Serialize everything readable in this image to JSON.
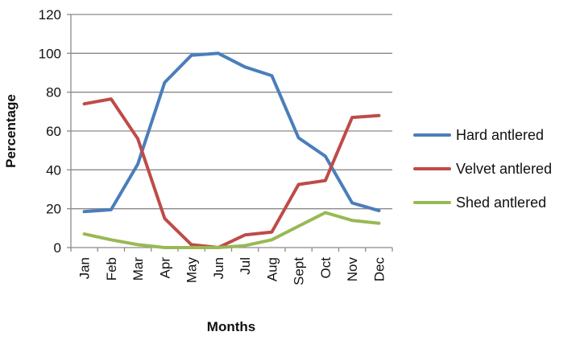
{
  "chart_data": {
    "type": "line",
    "title": "",
    "xlabel": "Months",
    "ylabel": "Percentage",
    "categories": [
      "Jan",
      "Feb",
      "Mar",
      "Apr",
      "May",
      "Jun",
      "Jul",
      "Aug",
      "Sept",
      "Oct",
      "Nov",
      "Dec"
    ],
    "ylim": [
      0,
      120
    ],
    "yticks": [
      "0",
      "20",
      "40",
      "60",
      "80",
      "100",
      "120"
    ],
    "grid": true,
    "legend_position": "right",
    "series": [
      {
        "name": "Hard antlered",
        "color": "#4A7EBB",
        "values": [
          18.5,
          19.5,
          43,
          85,
          99,
          100,
          93,
          88.5,
          56.5,
          47,
          23,
          19
        ]
      },
      {
        "name": "Velvet antlered",
        "color": "#BE4B48",
        "values": [
          74,
          76.5,
          56,
          15,
          1.5,
          0,
          6.5,
          8,
          32.5,
          34.5,
          67,
          68
        ]
      },
      {
        "name": "Shed antlered",
        "color": "#98B954",
        "values": [
          7,
          4,
          1.5,
          0,
          0,
          0,
          1,
          4,
          11,
          18,
          14,
          12.5
        ]
      }
    ]
  }
}
